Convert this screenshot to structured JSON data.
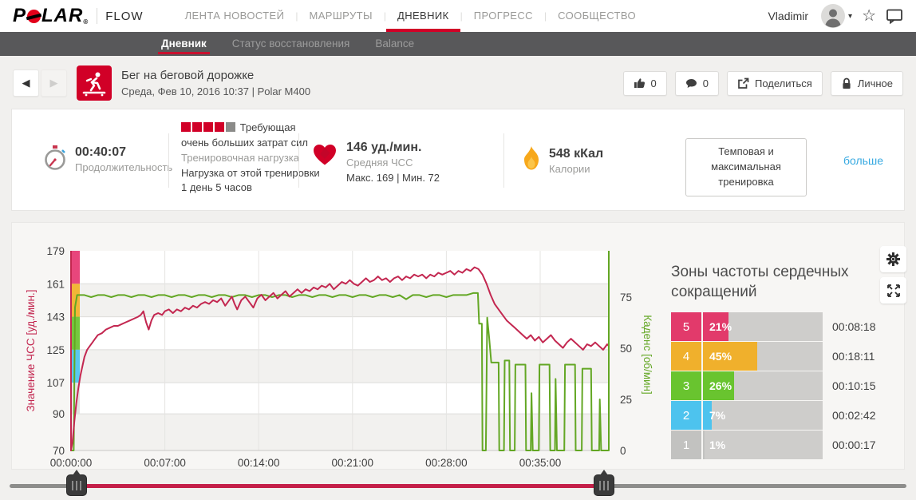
{
  "nav": {
    "logo": "POLAR",
    "logo_parts": {
      "before": "P",
      "after": "LAR",
      "reg": "®"
    },
    "flow": "FLOW",
    "items": [
      {
        "label": "ЛЕНТА НОВОСТЕЙ",
        "active": false
      },
      {
        "label": "МАРШРУТЫ",
        "active": false
      },
      {
        "label": "ДНЕВНИК",
        "active": true
      },
      {
        "label": "ПРОГРЕСС",
        "active": false
      },
      {
        "label": "СООБЩЕСТВО",
        "active": false
      }
    ],
    "separator": "|",
    "user": "Vladimir",
    "caret": "▾",
    "star_icon": "☆"
  },
  "subnav": {
    "items": [
      {
        "label": "Дневник",
        "active": true
      },
      {
        "label": "Статус восстановления",
        "active": false
      },
      {
        "label": "Balance",
        "active": false
      }
    ]
  },
  "header": {
    "back": "◀",
    "forward": "▶",
    "title": "Бег на беговой дорожке",
    "subtitle": "Среда, Фев 10, 2016 10:37 | Polar M400",
    "likes": "0",
    "comments": "0",
    "share": "Поделиться",
    "privacy": "Личное"
  },
  "stats": {
    "duration": {
      "value": "00:40:07",
      "label": "Продолжительность"
    },
    "load": {
      "squares_filled": 4,
      "squares_total": 5,
      "level": "Требующая очень больших затрат сил",
      "label": "Тренировочная нагрузка",
      "detail": "Нагрузка от этой тренировки 1 день 5 часов"
    },
    "hr": {
      "value": "146 уд./мин.",
      "label": "Средняя ЧСС",
      "minmax": "Макс. 169   |   Мин. 72"
    },
    "calories": {
      "value": "548 кКал",
      "label": "Калории"
    },
    "benefit": "Темповая и максимальная тренировка",
    "more": "больше"
  },
  "zones": {
    "title": "Зоны частоты сердечных сокращений",
    "rows": [
      {
        "zone": "5",
        "pct": 21,
        "pct_label": "21%",
        "time": "00:08:18",
        "color": "#e23a6b"
      },
      {
        "zone": "4",
        "pct": 45,
        "pct_label": "45%",
        "time": "00:18:11",
        "color": "#f0b02c"
      },
      {
        "zone": "3",
        "pct": 26,
        "pct_label": "26%",
        "time": "00:10:15",
        "color": "#69c42f"
      },
      {
        "zone": "2",
        "pct": 7,
        "pct_label": "7%",
        "time": "00:02:42",
        "color": "#4dc3ee"
      },
      {
        "zone": "1",
        "pct": 1,
        "pct_label": "1%",
        "time": "00:00:17",
        "color": "#c2c2c0"
      }
    ]
  },
  "chart_data": {
    "type": "line",
    "title": "",
    "x_axis": {
      "tick_labels": [
        "00:00:00",
        "00:07:00",
        "00:14:00",
        "00:21:00",
        "00:28:00",
        "00:35:00"
      ],
      "tick_minutes": [
        0,
        7,
        14,
        21,
        28,
        35
      ],
      "range_minutes": [
        0,
        40.12
      ]
    },
    "hr_axis": {
      "label": "Значение ЧСС [уд./мин.]",
      "ticks": [
        179,
        161,
        143,
        125,
        107,
        90,
        70
      ],
      "min": 70,
      "max": 179,
      "color": "#c32750"
    },
    "cadence_axis": {
      "label": "Каденс [об/мин]",
      "ticks": [
        75,
        50,
        25,
        0
      ],
      "min": 0,
      "max": 75,
      "color": "#63a724"
    },
    "zone_bands": [
      {
        "from": 179,
        "to": 161,
        "color": "#e8467c"
      },
      {
        "from": 161,
        "to": 143,
        "color": "#f2b637"
      },
      {
        "from": 143,
        "to": 125,
        "color": "#75c73d"
      },
      {
        "from": 125,
        "to": 107,
        "color": "#59c8ef"
      },
      {
        "from": 107,
        "to": 90,
        "color": "#e3e2e0"
      }
    ],
    "series": [
      {
        "name": "Каденс",
        "axis": "cadence",
        "color": "#63a724",
        "points": [
          [
            0,
            0
          ],
          [
            0.2,
            0
          ],
          [
            0.3,
            70
          ],
          [
            0.45,
            76
          ],
          [
            1,
            76
          ],
          [
            1.5,
            75
          ],
          [
            2,
            76
          ],
          [
            2.5,
            76
          ],
          [
            3,
            75
          ],
          [
            3.5,
            76
          ],
          [
            4,
            76
          ],
          [
            4.5,
            75
          ],
          [
            5,
            76
          ],
          [
            5.5,
            76
          ],
          [
            6,
            75
          ],
          [
            6.5,
            76
          ],
          [
            7,
            76
          ],
          [
            7.5,
            75
          ],
          [
            8,
            76
          ],
          [
            8.5,
            76
          ],
          [
            9,
            75
          ],
          [
            9.5,
            76
          ],
          [
            10,
            76
          ],
          [
            10.5,
            75
          ],
          [
            11,
            76
          ],
          [
            11.5,
            76
          ],
          [
            12,
            75
          ],
          [
            12.5,
            76
          ],
          [
            13,
            76
          ],
          [
            13.5,
            75
          ],
          [
            14,
            76
          ],
          [
            14.5,
            76
          ],
          [
            15,
            75
          ],
          [
            15.5,
            76
          ],
          [
            16,
            76
          ],
          [
            16.5,
            75
          ],
          [
            17,
            76
          ],
          [
            17.5,
            76
          ],
          [
            18,
            75
          ],
          [
            18.5,
            76
          ],
          [
            19,
            76
          ],
          [
            19.5,
            75
          ],
          [
            20,
            76
          ],
          [
            20.5,
            76
          ],
          [
            21,
            75
          ],
          [
            21.5,
            76
          ],
          [
            22,
            76
          ],
          [
            22.5,
            75
          ],
          [
            23,
            76
          ],
          [
            23.5,
            76
          ],
          [
            24,
            75
          ],
          [
            24.5,
            76
          ],
          [
            25,
            74
          ],
          [
            25.5,
            76
          ],
          [
            26,
            76
          ],
          [
            26.5,
            75
          ],
          [
            27,
            76
          ],
          [
            27.5,
            76
          ],
          [
            28,
            75
          ],
          [
            28.5,
            76
          ],
          [
            29,
            76
          ],
          [
            29.5,
            76
          ],
          [
            30,
            77
          ],
          [
            30.35,
            77
          ],
          [
            30.45,
            62
          ],
          [
            30.65,
            62
          ],
          [
            30.7,
            0
          ],
          [
            30.95,
            0
          ],
          [
            31.05,
            65
          ],
          [
            31.2,
            55
          ],
          [
            31.35,
            43
          ],
          [
            31.9,
            43
          ],
          [
            31.95,
            0
          ],
          [
            32.3,
            0
          ],
          [
            32.35,
            44
          ],
          [
            32.7,
            44
          ],
          [
            32.75,
            0
          ],
          [
            33.1,
            0
          ],
          [
            33.15,
            42
          ],
          [
            33.9,
            42
          ],
          [
            33.95,
            0
          ],
          [
            34.3,
            0
          ],
          [
            34.35,
            28
          ],
          [
            34.45,
            0
          ],
          [
            34.9,
            0
          ],
          [
            34.95,
            42
          ],
          [
            35.7,
            42
          ],
          [
            35.75,
            0
          ],
          [
            36.1,
            0
          ],
          [
            36.15,
            35
          ],
          [
            36.25,
            0
          ],
          [
            36.8,
            0
          ],
          [
            36.85,
            42
          ],
          [
            37.6,
            42
          ],
          [
            37.65,
            0
          ],
          [
            38.1,
            0
          ],
          [
            38.15,
            40
          ],
          [
            38.8,
            40
          ],
          [
            38.85,
            0
          ],
          [
            39.4,
            0
          ],
          [
            39.45,
            25
          ],
          [
            39.55,
            0
          ],
          [
            40.12,
            0
          ]
        ]
      },
      {
        "name": "ЧСС",
        "axis": "hr",
        "color": "#c32750",
        "points": [
          [
            0,
            70
          ],
          [
            0.12,
            75
          ],
          [
            0.25,
            86
          ],
          [
            0.4,
            96
          ],
          [
            0.55,
            104
          ],
          [
            0.7,
            111
          ],
          [
            0.85,
            116
          ],
          [
            1,
            121
          ],
          [
            1.2,
            125
          ],
          [
            1.4,
            127
          ],
          [
            1.6,
            129
          ],
          [
            1.8,
            131
          ],
          [
            2,
            133
          ],
          [
            2.3,
            134
          ],
          [
            2.6,
            136
          ],
          [
            2.9,
            137
          ],
          [
            3.2,
            138
          ],
          [
            3.5,
            138
          ],
          [
            3.8,
            139
          ],
          [
            4.1,
            140
          ],
          [
            4.4,
            141
          ],
          [
            4.7,
            142
          ],
          [
            5,
            143
          ],
          [
            5.2,
            144
          ],
          [
            5.4,
            146
          ],
          [
            5.6,
            140
          ],
          [
            5.8,
            136
          ],
          [
            6,
            141
          ],
          [
            6.2,
            144
          ],
          [
            6.5,
            145
          ],
          [
            6.8,
            144
          ],
          [
            7,
            146
          ],
          [
            7.3,
            147
          ],
          [
            7.6,
            145
          ],
          [
            7.9,
            147
          ],
          [
            8.2,
            146
          ],
          [
            8.5,
            148
          ],
          [
            8.8,
            147
          ],
          [
            9.1,
            149
          ],
          [
            9.4,
            148
          ],
          [
            9.7,
            150
          ],
          [
            10,
            151
          ],
          [
            10.3,
            150
          ],
          [
            10.6,
            152
          ],
          [
            10.9,
            151
          ],
          [
            11.2,
            153
          ],
          [
            11.5,
            149
          ],
          [
            11.8,
            152
          ],
          [
            12,
            154
          ],
          [
            12.2,
            150
          ],
          [
            12.4,
            147
          ],
          [
            12.7,
            152
          ],
          [
            13,
            154
          ],
          [
            13.3,
            151
          ],
          [
            13.6,
            148
          ],
          [
            13.9,
            153
          ],
          [
            14.2,
            155
          ],
          [
            14.5,
            152
          ],
          [
            14.8,
            154
          ],
          [
            15.1,
            156
          ],
          [
            15.4,
            153
          ],
          [
            15.7,
            155
          ],
          [
            16,
            157
          ],
          [
            16.3,
            154
          ],
          [
            16.6,
            156
          ],
          [
            16.9,
            158
          ],
          [
            17.2,
            156
          ],
          [
            17.5,
            158
          ],
          [
            17.8,
            157
          ],
          [
            18.1,
            159
          ],
          [
            18.4,
            158
          ],
          [
            18.7,
            160
          ],
          [
            19,
            159
          ],
          [
            19.3,
            161
          ],
          [
            19.6,
            158
          ],
          [
            19.9,
            160
          ],
          [
            20.2,
            162
          ],
          [
            20.5,
            161
          ],
          [
            20.8,
            163
          ],
          [
            21.1,
            161
          ],
          [
            21.4,
            160
          ],
          [
            21.7,
            162
          ],
          [
            22,
            164
          ],
          [
            22.3,
            162
          ],
          [
            22.6,
            163
          ],
          [
            22.9,
            165
          ],
          [
            23.2,
            163
          ],
          [
            23.5,
            164
          ],
          [
            23.8,
            162
          ],
          [
            24.1,
            164
          ],
          [
            24.4,
            165
          ],
          [
            24.7,
            163
          ],
          [
            25,
            165
          ],
          [
            25.3,
            164
          ],
          [
            25.6,
            166
          ],
          [
            25.9,
            165
          ],
          [
            26.2,
            166
          ],
          [
            26.5,
            164
          ],
          [
            26.8,
            166
          ],
          [
            27.1,
            165
          ],
          [
            27.4,
            167
          ],
          [
            27.7,
            166
          ],
          [
            28,
            167
          ],
          [
            28.3,
            168
          ],
          [
            28.6,
            166
          ],
          [
            28.9,
            168
          ],
          [
            29.2,
            167
          ],
          [
            29.5,
            169
          ],
          [
            29.8,
            168
          ],
          [
            30.1,
            170
          ],
          [
            30.4,
            169
          ],
          [
            30.7,
            166
          ],
          [
            31,
            161
          ],
          [
            31.3,
            155
          ],
          [
            31.6,
            150
          ],
          [
            31.9,
            147
          ],
          [
            32.2,
            144
          ],
          [
            32.5,
            141
          ],
          [
            32.8,
            139
          ],
          [
            33.1,
            137
          ],
          [
            33.4,
            135
          ],
          [
            33.7,
            133
          ],
          [
            34,
            131
          ],
          [
            34.3,
            133
          ],
          [
            34.6,
            130
          ],
          [
            34.9,
            132
          ],
          [
            35.2,
            129
          ],
          [
            35.5,
            131
          ],
          [
            35.8,
            133
          ],
          [
            36.1,
            130
          ],
          [
            36.4,
            128
          ],
          [
            36.7,
            126
          ],
          [
            37,
            129
          ],
          [
            37.3,
            131
          ],
          [
            37.6,
            129
          ],
          [
            37.9,
            127
          ],
          [
            38.2,
            125
          ],
          [
            38.5,
            128
          ],
          [
            38.8,
            127
          ],
          [
            39.1,
            129
          ],
          [
            39.4,
            127
          ],
          [
            39.7,
            125
          ],
          [
            40,
            128
          ],
          [
            40.12,
            127
          ]
        ]
      }
    ]
  }
}
